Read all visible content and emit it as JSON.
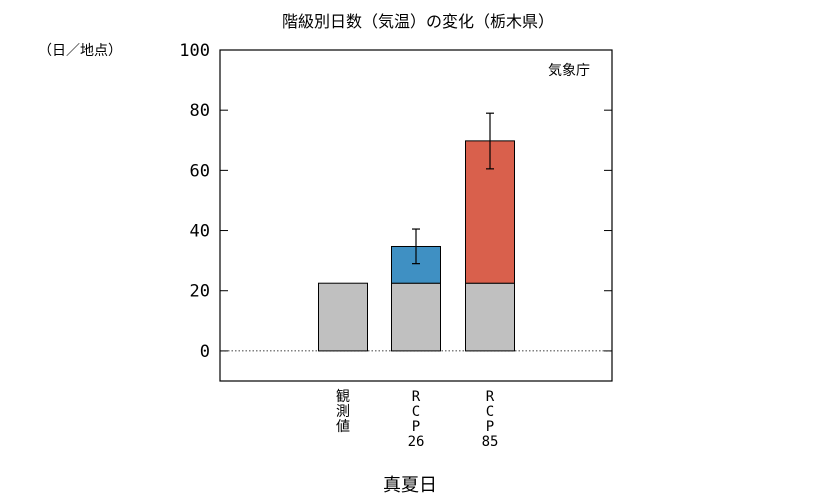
{
  "chart_data": {
    "type": "bar",
    "stacked": true,
    "title": "階級別日数（気温）の変化（栃木県）",
    "ylabel": "（日／地点）",
    "xlabel": "真夏日",
    "source": "気象庁",
    "ylim": [
      -10,
      100
    ],
    "yticks": [
      "0",
      "20",
      "40",
      "60",
      "80",
      "100"
    ],
    "grid": false,
    "zero_line": true,
    "categories": [
      [
        "観",
        "測",
        "値"
      ],
      [
        "R",
        "C",
        "P",
        "26"
      ],
      [
        "R",
        "C",
        "P",
        "85"
      ]
    ],
    "series": [
      {
        "color": "#c0c0c0",
        "values": [
          22.5,
          22.5,
          22.5
        ]
      },
      {
        "color": "#3f90c3",
        "values": [
          0,
          12.2,
          47.3
        ]
      }
    ],
    "error_bars": [
      null,
      {
        "low": 29,
        "high": 40.5
      },
      {
        "low": 60.5,
        "high": 79
      }
    ]
  }
}
